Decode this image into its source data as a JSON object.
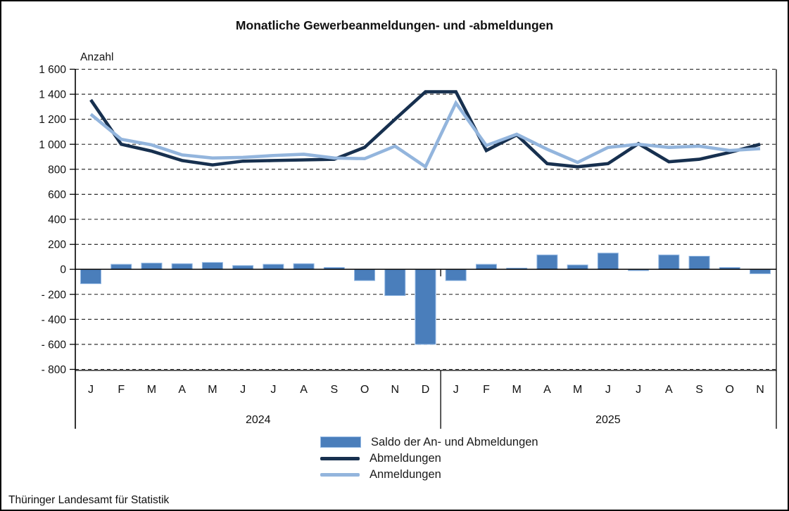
{
  "title": "Monatliche Gewerbeanmeldungen- und -abmeldungen",
  "y_axis_label": "Anzahl",
  "footer": "Thüringer Landesamt für Statistik",
  "legend": {
    "saldo": "Saldo der An- und Abmeldungen",
    "abmeldungen": "Abmeldungen",
    "anmeldungen": "Anmeldungen"
  },
  "colors": {
    "saldo": "#4a7ebb",
    "saldo_border": "#94b9e4",
    "abmeldungen": "#17304f",
    "anmeldungen": "#93b5dd",
    "grid": "#1a1a1a",
    "axis": "#000000",
    "text": "#111111"
  },
  "chart_data": {
    "type": "bar",
    "note": "bars = Saldo series; two overlaid line series",
    "x": [
      "J",
      "F",
      "M",
      "A",
      "M",
      "J",
      "J",
      "A",
      "S",
      "O",
      "N",
      "D",
      "J",
      "F",
      "M",
      "A",
      "M",
      "J",
      "J",
      "A",
      "S",
      "O",
      "N"
    ],
    "year_groups": [
      {
        "label": "2024",
        "months": 12
      },
      {
        "label": "2025",
        "months": 11
      }
    ],
    "ylim": [
      -800,
      1600
    ],
    "ytick_step": 200,
    "ytick_labels": [
      "1 600",
      "1 400",
      "1 200",
      "1 000",
      "800",
      "600",
      "400",
      "200",
      "0",
      "- 200",
      "- 400",
      "- 600",
      "- 800"
    ],
    "grid": "horizontal dashed",
    "legend_position": "bottom",
    "series": [
      {
        "name": "Saldo der An- und Abmeldungen",
        "type": "bar",
        "values": [
          -115,
          40,
          50,
          45,
          55,
          30,
          40,
          45,
          15,
          -90,
          -210,
          -600,
          -90,
          40,
          10,
          115,
          35,
          130,
          -10,
          115,
          105,
          15,
          -35
        ]
      },
      {
        "name": "Abmeldungen",
        "type": "line",
        "values": [
          1355,
          1000,
          945,
          870,
          835,
          865,
          870,
          875,
          880,
          975,
          1200,
          1420,
          1420,
          950,
          1075,
          845,
          820,
          845,
          1005,
          860,
          880,
          935,
          1000
        ]
      },
      {
        "name": "Anmeldungen",
        "type": "line",
        "values": [
          1240,
          1040,
          995,
          915,
          890,
          895,
          910,
          920,
          890,
          885,
          985,
          820,
          1330,
          990,
          1080,
          960,
          855,
          975,
          1000,
          975,
          985,
          950,
          965
        ]
      }
    ]
  }
}
